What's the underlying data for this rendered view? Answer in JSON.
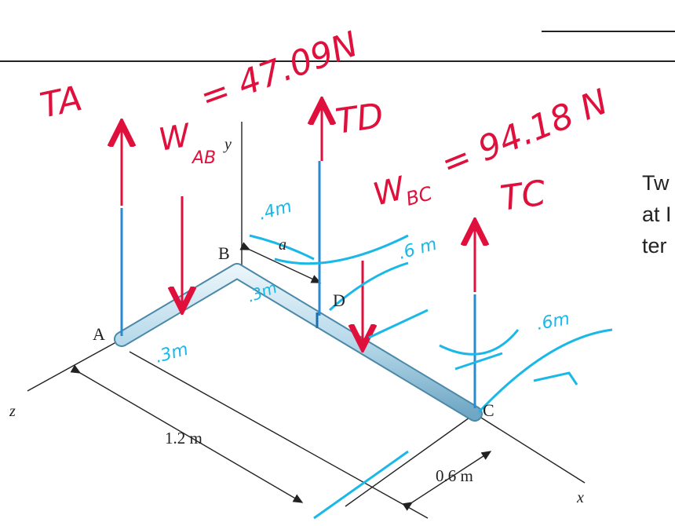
{
  "diagram": {
    "labels": {
      "point_a": "A",
      "point_b": "B",
      "point_c": "C",
      "point_d": "D",
      "axis_y": "y",
      "axis_z": "z",
      "axis_x": "x",
      "dim_a": "a",
      "dim_ac": "1.2 m",
      "dim_bc": "0.6 m"
    },
    "annotations": {
      "t_a": "TA",
      "w_ab": {
        "symbol": "W",
        "subscript": "AB",
        "value": "= 47.09N"
      },
      "t_d": "TD",
      "w_bc": {
        "symbol": "W",
        "subscript": "BC",
        "value": "= 94.18 N"
      },
      "t_c": "TC",
      "dist_bd": ".4m",
      "dist_dc": ".6 m",
      "dist_b": ".3m",
      "dist_a": ".3m",
      "dist_c": ".6m"
    },
    "side_text": [
      "Tw",
      "at I",
      "ter"
    ]
  }
}
